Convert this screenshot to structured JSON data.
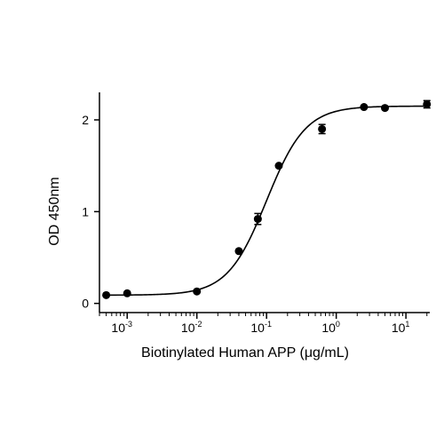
{
  "chart_data": {
    "type": "scatter",
    "title": "",
    "xlabel": "Biotinylated Human APP (μg/mL)",
    "ylabel": "OD 450nm",
    "x_scale": "log",
    "xlim": [
      0.0004,
      22
    ],
    "ylim": [
      -0.1,
      2.3
    ],
    "grid": false,
    "legend": "none",
    "x_ticks": [
      {
        "value": 0.001,
        "base": "10",
        "exponent": "-3"
      },
      {
        "value": 0.01,
        "base": "10",
        "exponent": "-2"
      },
      {
        "value": 0.1,
        "base": "10",
        "exponent": "-1"
      },
      {
        "value": 1,
        "base": "10",
        "exponent": "0"
      },
      {
        "value": 10,
        "base": "10",
        "exponent": "1"
      }
    ],
    "y_ticks": [
      {
        "value": 0,
        "label": "0"
      },
      {
        "value": 1,
        "label": "1"
      },
      {
        "value": 2,
        "label": "2"
      }
    ],
    "series": [
      {
        "points": [
          {
            "x": 0.0005,
            "y": 0.09
          },
          {
            "x": 0.001,
            "y": 0.11
          },
          {
            "x": 0.01,
            "y": 0.13
          },
          {
            "x": 0.04,
            "y": 0.57
          },
          {
            "x": 0.075,
            "y": 0.92,
            "err": 0.06
          },
          {
            "x": 0.15,
            "y": 1.5
          },
          {
            "x": 0.625,
            "y": 1.9,
            "err": 0.05
          },
          {
            "x": 2.5,
            "y": 2.14
          },
          {
            "x": 5,
            "y": 2.13
          },
          {
            "x": 20,
            "y": 2.17,
            "err": 0.04
          }
        ],
        "fit": {
          "model": "4PL",
          "bottom": 0.09,
          "top": 2.15,
          "ec50": 0.1,
          "hill": 1.55
        }
      }
    ]
  }
}
